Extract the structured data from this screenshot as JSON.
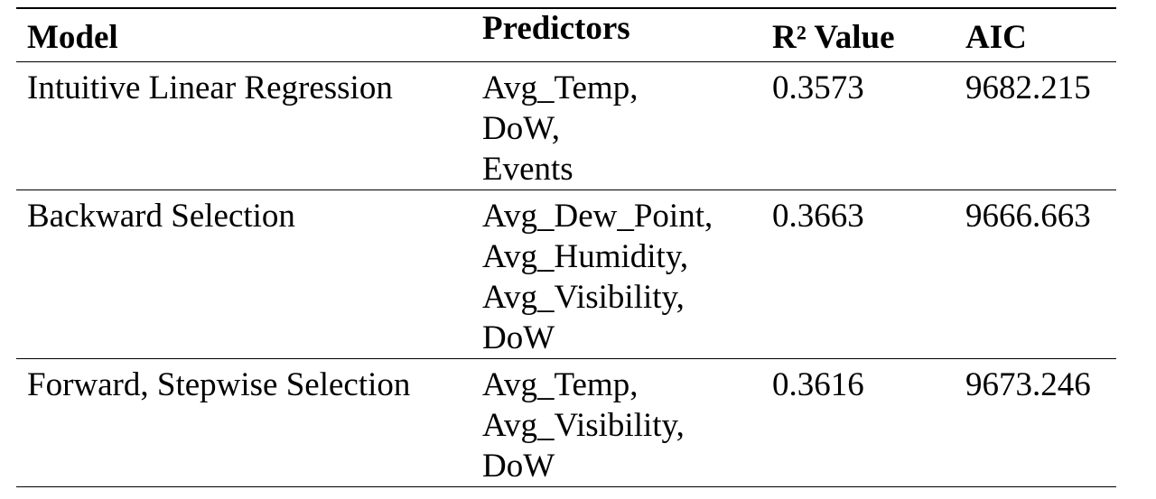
{
  "table": {
    "headers": {
      "model": "Model",
      "predictors": "Predictors",
      "r2": "R² Value",
      "aic": "AIC"
    },
    "rows": [
      {
        "model": "Intuitive Linear Regression",
        "predictors": [
          "Avg_Temp,",
          "DoW,",
          "Events"
        ],
        "r2": "0.3573",
        "aic": "9682.215"
      },
      {
        "model": "Backward Selection",
        "predictors": [
          "Avg_Dew_Point,",
          "Avg_Humidity,",
          "Avg_Visibility,",
          "DoW"
        ],
        "r2": "0.3663",
        "aic": "9666.663"
      },
      {
        "model": "Forward, Stepwise Selection",
        "predictors": [
          "Avg_Temp,",
          "Avg_Visibility,",
          "DoW"
        ],
        "r2": "0.3616",
        "aic": "9673.246"
      }
    ]
  }
}
